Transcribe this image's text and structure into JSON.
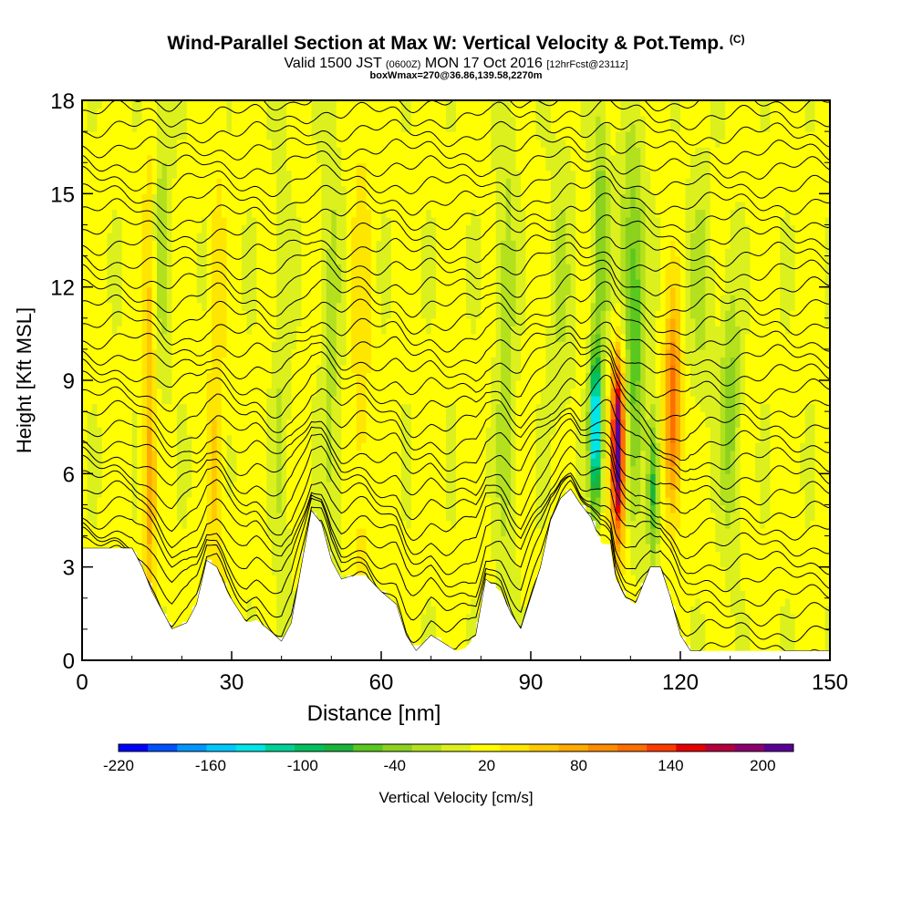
{
  "header": {
    "title": "Wind-Parallel Section at Max W: Vertical Velocity & Pot.Temp.",
    "copyright": "(C)",
    "valid_prefix": "Valid 1500 JST",
    "valid_utc": "(0600Z)",
    "valid_date": "MON 17 Oct 2016",
    "forecast": "[12hrFcst@2311z]",
    "box_info": "boxWmax=270@36.86,139.58,2270m"
  },
  "chart_data": {
    "type": "heatmap",
    "title": "Wind-Parallel Section at Max W: Vertical Velocity & Pot.Temp.",
    "xlabel": "Distance [nm]",
    "ylabel": "Height [Kft MSL]",
    "xlim": [
      0,
      150
    ],
    "ylim": [
      0,
      18
    ],
    "xticks": [
      0,
      30,
      60,
      90,
      120,
      150
    ],
    "yticks": [
      0,
      3,
      6,
      9,
      12,
      15,
      18
    ],
    "colorbar": {
      "label": "Vertical Velocity [cm/s]",
      "range": [
        -220,
        220
      ],
      "ticks": [
        -220,
        -160,
        -100,
        -40,
        20,
        80,
        140,
        200
      ],
      "colors": [
        "#0000ff",
        "#0050ff",
        "#0096ff",
        "#00c8ff",
        "#00e6e6",
        "#00d296",
        "#00c060",
        "#1ab43c",
        "#5ac81e",
        "#8cd21e",
        "#b4e11e",
        "#dcf01e",
        "#ffff00",
        "#ffe600",
        "#ffc800",
        "#ffaa00",
        "#ff8c00",
        "#ff6e00",
        "#ff3c00",
        "#e60000",
        "#b4003c",
        "#8c006e",
        "#5a0096"
      ]
    },
    "terrain_kft": [
      [
        0,
        3.6
      ],
      [
        10,
        3.6
      ],
      [
        12,
        3.0
      ],
      [
        14,
        2.2
      ],
      [
        16,
        1.6
      ],
      [
        18,
        1.0
      ],
      [
        21,
        1.2
      ],
      [
        23,
        1.8
      ],
      [
        25,
        3.2
      ],
      [
        27,
        3.0
      ],
      [
        29,
        2.2
      ],
      [
        31,
        1.7
      ],
      [
        33,
        1.2
      ],
      [
        35,
        1.3
      ],
      [
        38,
        0.9
      ],
      [
        40,
        0.6
      ],
      [
        42,
        1.2
      ],
      [
        44,
        3.0
      ],
      [
        46,
        4.8
      ],
      [
        48,
        4.4
      ],
      [
        50,
        3.2
      ],
      [
        52,
        2.6
      ],
      [
        54,
        2.7
      ],
      [
        57,
        2.7
      ],
      [
        60,
        2.2
      ],
      [
        63,
        1.8
      ],
      [
        65,
        0.8
      ],
      [
        67,
        0.3
      ],
      [
        70,
        0.8
      ],
      [
        72,
        0.6
      ],
      [
        75,
        0.3
      ],
      [
        77,
        0.4
      ],
      [
        79,
        0.8
      ],
      [
        81,
        2.6
      ],
      [
        84,
        2.2
      ],
      [
        86,
        1.5
      ],
      [
        88,
        1.0
      ],
      [
        90,
        2.0
      ],
      [
        92,
        3.0
      ],
      [
        94,
        4.5
      ],
      [
        96,
        5.2
      ],
      [
        98,
        5.5
      ],
      [
        100,
        5.0
      ],
      [
        102,
        4.6
      ],
      [
        104,
        3.8
      ],
      [
        106,
        3.6
      ],
      [
        107,
        2.6
      ],
      [
        109,
        2.0
      ],
      [
        111,
        1.8
      ],
      [
        114,
        3.0
      ],
      [
        116,
        3.0
      ],
      [
        118,
        2.0
      ],
      [
        120,
        0.8
      ],
      [
        122,
        0.3
      ],
      [
        126,
        0.3
      ],
      [
        150,
        0.3
      ]
    ],
    "theta_label": "Pot.Temp."
  }
}
